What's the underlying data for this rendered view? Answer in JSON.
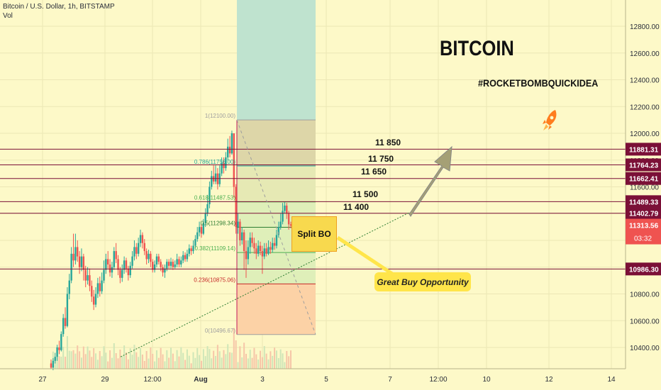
{
  "header": {
    "symbol_line": "Bitcoin / U.S. Dollar, 1h, BITSTAMP",
    "indicator": "Vol"
  },
  "annotations": {
    "title": "BITCOIN",
    "hashtag": "#ROCKETBOMBQUICKIDEA",
    "split_box": "Split BO",
    "callout": "Great Buy Opportunity",
    "rocket_icon": "rocket-icon"
  },
  "level_labels": [
    "11 850",
    "11 750",
    "11 650",
    "11 500",
    "11 400"
  ],
  "colors": {
    "background": "#fdf9c8",
    "candle_up": "#26a69a",
    "candle_down": "#ef5350",
    "level_line": "#7b1037",
    "price_badge": "#7b1037",
    "current_price_badge": "#ef5350",
    "accent_orange": "#ff7d1e"
  },
  "chart_data": {
    "type": "candlestick",
    "title": "Bitcoin / U.S. Dollar, 1h, BITSTAMP",
    "x_ticks": [
      "27",
      "29",
      "12:00",
      "Aug",
      "3",
      "5",
      "7",
      "12:00",
      "10",
      "12",
      "14"
    ],
    "y_ticks": [
      10400,
      10600,
      10800,
      11000,
      11200,
      11400,
      11600,
      11800,
      12000,
      12200,
      12400,
      12600,
      12800
    ],
    "ylim": [
      10300,
      12950
    ],
    "horizontal_levels": [
      11881.31,
      11764.23,
      11662.41,
      11489.33,
      11402.79,
      10986.3
    ],
    "current_price": 11313.56,
    "countdown": "03:32",
    "fibonacci": [
      {
        "ratio": "1",
        "price": 12100.0,
        "label": "1(12100.00)"
      },
      {
        "ratio": "0.786",
        "price": 11756.0,
        "label": "0.786(11756.00)"
      },
      {
        "ratio": "0.618",
        "price": 11487.53,
        "label": "0.618(11487.53)"
      },
      {
        "ratio": "0.5",
        "price": 11298.34,
        "label": "0.5(11298.34)"
      },
      {
        "ratio": "0.382",
        "price": 11109.14,
        "label": "0.382(11109.14)"
      },
      {
        "ratio": "0.236",
        "price": 10875.06,
        "label": "0.236(10875.06)"
      },
      {
        "ratio": "0",
        "price": 10496.67,
        "label": "0(10496.67)"
      }
    ],
    "candles": [
      [
        10280,
        10250,
        10310,
        10240
      ],
      [
        10250,
        10300,
        10320,
        10230
      ],
      [
        10300,
        10330,
        10360,
        10280
      ],
      [
        10330,
        10400,
        10420,
        10300
      ],
      [
        10400,
        10380,
        10450,
        10350
      ],
      [
        10380,
        10500,
        10520,
        10370
      ],
      [
        10500,
        10620,
        10650,
        10480
      ],
      [
        10620,
        10560,
        10700,
        10540
      ],
      [
        10560,
        10800,
        10850,
        10550
      ],
      [
        10800,
        10900,
        10950,
        10760
      ],
      [
        10900,
        11100,
        11150,
        10880
      ],
      [
        11100,
        11050,
        11250,
        11000
      ],
      [
        11050,
        11150,
        11250,
        11020
      ],
      [
        11150,
        11080,
        11200,
        11040
      ],
      [
        11080,
        11000,
        11120,
        10950
      ],
      [
        11000,
        11080,
        11140,
        10970
      ],
      [
        11080,
        10980,
        11100,
        10900
      ],
      [
        10980,
        10900,
        11010,
        10850
      ],
      [
        10900,
        10940,
        11000,
        10870
      ],
      [
        10940,
        10860,
        10990,
        10820
      ],
      [
        10860,
        10780,
        10900,
        10740
      ],
      [
        10780,
        10720,
        10830,
        10680
      ],
      [
        10720,
        10800,
        10850,
        10700
      ],
      [
        10800,
        10880,
        10920,
        10770
      ],
      [
        10880,
        10820,
        10930,
        10780
      ],
      [
        10820,
        10900,
        10960,
        10800
      ],
      [
        10900,
        10980,
        11050,
        10880
      ],
      [
        10980,
        11060,
        11100,
        10950
      ],
      [
        11060,
        11020,
        11120,
        10990
      ],
      [
        11020,
        10960,
        11060,
        10930
      ],
      [
        10960,
        11000,
        11040,
        10920
      ],
      [
        11000,
        11120,
        11150,
        10980
      ],
      [
        11120,
        11060,
        11180,
        11030
      ],
      [
        11060,
        10980,
        11090,
        10940
      ],
      [
        10980,
        10920,
        11000,
        10880
      ],
      [
        10920,
        10980,
        11020,
        10890
      ],
      [
        10980,
        11050,
        11080,
        10950
      ],
      [
        11050,
        10990,
        11070,
        10960
      ],
      [
        10990,
        10940,
        11010,
        10900
      ],
      [
        10940,
        11010,
        11040,
        10920
      ],
      [
        11010,
        11080,
        11120,
        10990
      ],
      [
        11080,
        11150,
        11200,
        11050
      ],
      [
        11150,
        11100,
        11180,
        11060
      ],
      [
        11100,
        11180,
        11220,
        11080
      ],
      [
        11180,
        11240,
        11280,
        11150
      ],
      [
        11240,
        11180,
        11260,
        11140
      ],
      [
        11180,
        11120,
        11210,
        11090
      ],
      [
        11120,
        11060,
        11140,
        11020
      ],
      [
        11060,
        11100,
        11130,
        11030
      ],
      [
        11100,
        11040,
        11120,
        11000
      ],
      [
        11040,
        10980,
        11060,
        10960
      ],
      [
        10980,
        11020,
        11050,
        10960
      ],
      [
        11020,
        11080,
        11100,
        11000
      ],
      [
        11080,
        11040,
        11100,
        11020
      ],
      [
        11040,
        11000,
        11060,
        10970
      ],
      [
        11000,
        10960,
        11020,
        10930
      ],
      [
        10960,
        10990,
        11020,
        10920
      ],
      [
        10990,
        11040,
        11060,
        10970
      ],
      [
        11040,
        11010,
        11060,
        10990
      ],
      [
        11010,
        11040,
        11070,
        10990
      ],
      [
        11040,
        11000,
        11060,
        10980
      ],
      [
        11000,
        11020,
        11050,
        10990
      ],
      [
        11020,
        11060,
        11100,
        11000
      ],
      [
        11060,
        11020,
        11080,
        11000
      ],
      [
        11020,
        11050,
        11080,
        11000
      ],
      [
        11050,
        11090,
        11120,
        11030
      ],
      [
        11090,
        11060,
        11110,
        11040
      ],
      [
        11060,
        11100,
        11130,
        11040
      ],
      [
        11100,
        11140,
        11170,
        11080
      ],
      [
        11140,
        11120,
        11160,
        11090
      ],
      [
        11120,
        11160,
        11200,
        11100
      ],
      [
        11160,
        11210,
        11240,
        11140
      ],
      [
        11210,
        11260,
        11300,
        11190
      ],
      [
        11260,
        11300,
        11340,
        11230
      ],
      [
        11300,
        11250,
        11320,
        11220
      ],
      [
        11250,
        11330,
        11360,
        11240
      ],
      [
        11330,
        11400,
        11440,
        11300
      ],
      [
        11400,
        11470,
        11540,
        11380
      ],
      [
        11470,
        11600,
        11640,
        11440
      ],
      [
        11600,
        11680,
        11720,
        11580
      ],
      [
        11680,
        11640,
        11760,
        11620
      ],
      [
        11640,
        11700,
        11760,
        11620
      ],
      [
        11700,
        11620,
        11740,
        11580
      ],
      [
        11620,
        11700,
        11760,
        11600
      ],
      [
        11700,
        11780,
        11820,
        11680
      ],
      [
        11780,
        11740,
        11820,
        11700
      ],
      [
        11740,
        11820,
        11860,
        11720
      ],
      [
        11820,
        11900,
        11960,
        11800
      ],
      [
        11900,
        11850,
        11980,
        11820
      ],
      [
        11850,
        12000,
        12020,
        11840
      ],
      [
        12000,
        11600,
        12000,
        11520
      ],
      [
        11600,
        11300,
        11620,
        11250
      ],
      [
        11300,
        11340,
        11400,
        11250
      ],
      [
        11340,
        11200,
        11360,
        11160
      ],
      [
        11200,
        11260,
        11300,
        11170
      ],
      [
        11260,
        11120,
        11280,
        10980
      ],
      [
        11120,
        11060,
        11200,
        10920
      ],
      [
        11060,
        11150,
        11200,
        11020
      ],
      [
        11150,
        11220,
        11260,
        11100
      ],
      [
        11220,
        11180,
        11260,
        11150
      ],
      [
        11180,
        11140,
        11220,
        11100
      ],
      [
        11140,
        11100,
        11180,
        11060
      ],
      [
        11100,
        11160,
        11200,
        11080
      ],
      [
        11160,
        11120,
        11190,
        11090
      ],
      [
        11120,
        11080,
        11160,
        10950
      ],
      [
        11080,
        11140,
        11180,
        11060
      ],
      [
        11140,
        11100,
        11180,
        11080
      ],
      [
        11100,
        11150,
        11200,
        11090
      ],
      [
        11150,
        11130,
        11190,
        11100
      ],
      [
        11130,
        11180,
        11220,
        11110
      ],
      [
        11180,
        11160,
        11220,
        11130
      ],
      [
        11160,
        11240,
        11280,
        11140
      ],
      [
        11240,
        11300,
        11340,
        11220
      ],
      [
        11300,
        11340,
        11400,
        11280
      ],
      [
        11340,
        11420,
        11480,
        11320
      ],
      [
        11420,
        11460,
        11490,
        11400
      ],
      [
        11460,
        11400,
        11480,
        11360
      ],
      [
        11400,
        11320,
        11420,
        11280
      ],
      [
        11320,
        11310,
        11340,
        11290
      ]
    ]
  }
}
